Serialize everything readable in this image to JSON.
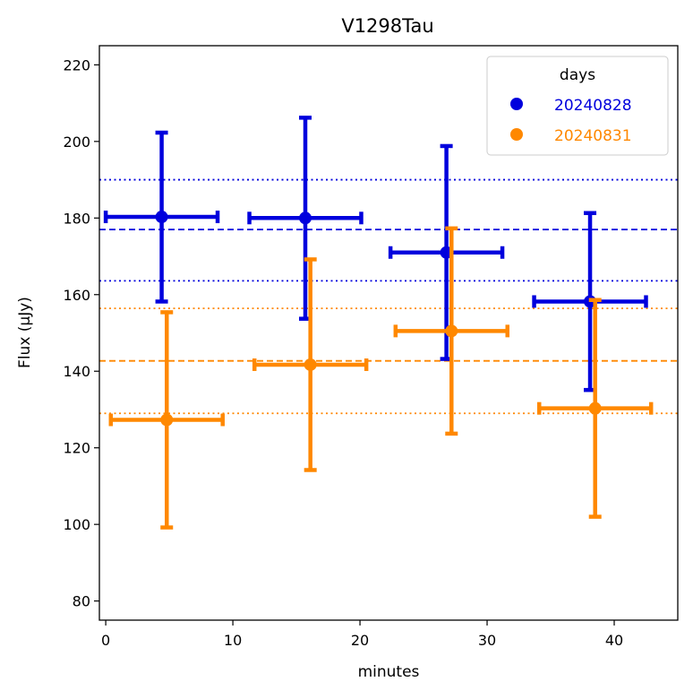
{
  "chart_data": {
    "type": "scatter",
    "title": "V1298Tau",
    "xlabel": "minutes",
    "ylabel": "Flux (μJy)",
    "xlim": [
      -0.5,
      45
    ],
    "ylim": [
      75,
      225
    ],
    "xticks": [
      0,
      10,
      20,
      30,
      40
    ],
    "yticks": [
      80,
      100,
      120,
      140,
      160,
      180,
      200,
      220
    ],
    "legend": {
      "title": "days",
      "position": "top-right"
    },
    "series": [
      {
        "name": "20240828",
        "color": "#0000dd",
        "mean": 177,
        "band": [
          163.6,
          190
        ],
        "points": [
          {
            "x": 4.4,
            "xerr": 4.4,
            "y": 180.3,
            "yerr_low": 22.1,
            "yerr_high": 22.0
          },
          {
            "x": 15.7,
            "xerr": 4.4,
            "y": 180.0,
            "yerr_low": 26.3,
            "yerr_high": 26.2
          },
          {
            "x": 26.8,
            "xerr": 4.4,
            "y": 171.0,
            "yerr_low": 27.8,
            "yerr_high": 27.8
          },
          {
            "x": 38.1,
            "xerr": 4.4,
            "y": 158.2,
            "yerr_low": 23.1,
            "yerr_high": 23.1
          }
        ]
      },
      {
        "name": "20240831",
        "color": "#ff8800",
        "mean": 142.7,
        "band": [
          129,
          156.4
        ],
        "points": [
          {
            "x": 4.8,
            "xerr": 4.4,
            "y": 127.3,
            "yerr_low": 28.1,
            "yerr_high": 28.1
          },
          {
            "x": 16.1,
            "xerr": 4.4,
            "y": 141.7,
            "yerr_low": 27.5,
            "yerr_high": 27.5
          },
          {
            "x": 27.2,
            "xerr": 4.4,
            "y": 150.5,
            "yerr_low": 26.8,
            "yerr_high": 26.8
          },
          {
            "x": 38.5,
            "xerr": 4.4,
            "y": 130.3,
            "yerr_low": 28.3,
            "yerr_high": 28.3
          }
        ]
      }
    ]
  }
}
